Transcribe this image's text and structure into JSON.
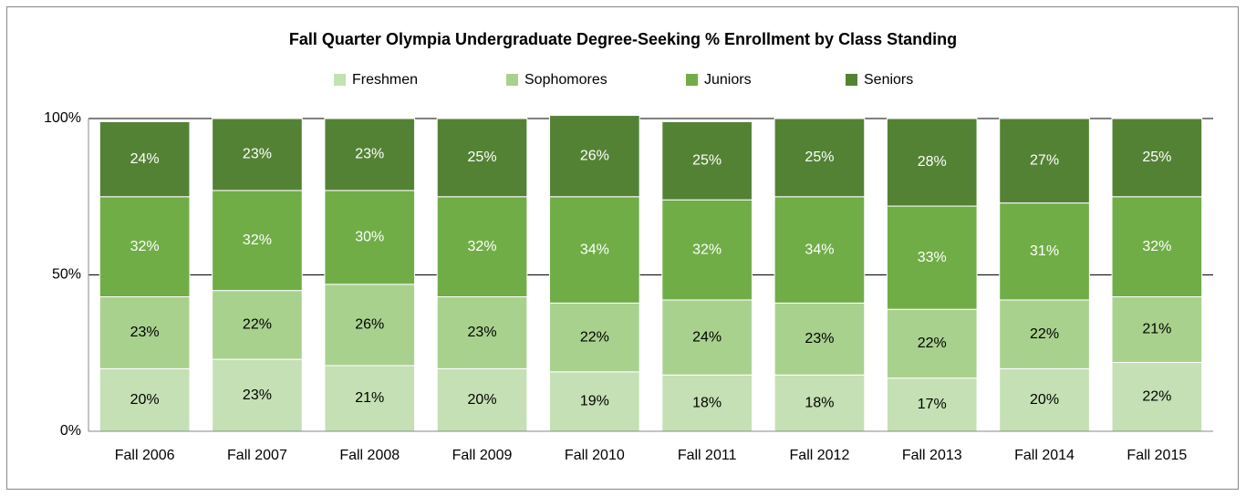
{
  "chart_data": {
    "type": "stacked_bar",
    "title": "Fall Quarter Olympia Undergraduate Degree-Seeking  % Enrollment by Class Standing",
    "categories": [
      "Fall 2006",
      "Fall 2007",
      "Fall 2008",
      "Fall 2009",
      "Fall 2010",
      "Fall 2011",
      "Fall 2012",
      "Fall 2013",
      "Fall 2014",
      "Fall 2015"
    ],
    "series": [
      {
        "name": "Freshmen",
        "color": "#c5e0b4",
        "values": [
          20,
          23,
          21,
          20,
          19,
          18,
          18,
          17,
          20,
          22
        ],
        "value_labels": [
          "20%",
          "23%",
          "21%",
          "20%",
          "19%",
          "18%",
          "18%",
          "17%",
          "20%",
          "22%"
        ]
      },
      {
        "name": "Sophomores",
        "color": "#a9d18e",
        "values": [
          23,
          22,
          26,
          23,
          22,
          24,
          23,
          22,
          22,
          21
        ],
        "value_labels": [
          "23%",
          "22%",
          "26%",
          "23%",
          "22%",
          "24%",
          "23%",
          "22%",
          "22%",
          "21%"
        ]
      },
      {
        "name": "Juniors",
        "color": "#70ad47",
        "values": [
          32,
          32,
          30,
          32,
          34,
          32,
          34,
          33,
          31,
          32
        ],
        "value_labels": [
          "32%",
          "32%",
          "30%",
          "32%",
          "34%",
          "32%",
          "34%",
          "33%",
          "31%",
          "32%"
        ]
      },
      {
        "name": "Seniors",
        "color": "#548235",
        "values": [
          24,
          23,
          23,
          25,
          26,
          25,
          25,
          28,
          27,
          25
        ],
        "value_labels": [
          "24%",
          "23%",
          "23%",
          "25%",
          "26%",
          "25%",
          "25%",
          "28%",
          "27%",
          "25%"
        ]
      }
    ],
    "ylim": [
      0,
      100
    ],
    "yticks": [
      {
        "value": 0,
        "label": "0%"
      },
      {
        "value": 50,
        "label": "50%"
      },
      {
        "value": 100,
        "label": "100%"
      }
    ],
    "grid": true,
    "legend": "top"
  }
}
